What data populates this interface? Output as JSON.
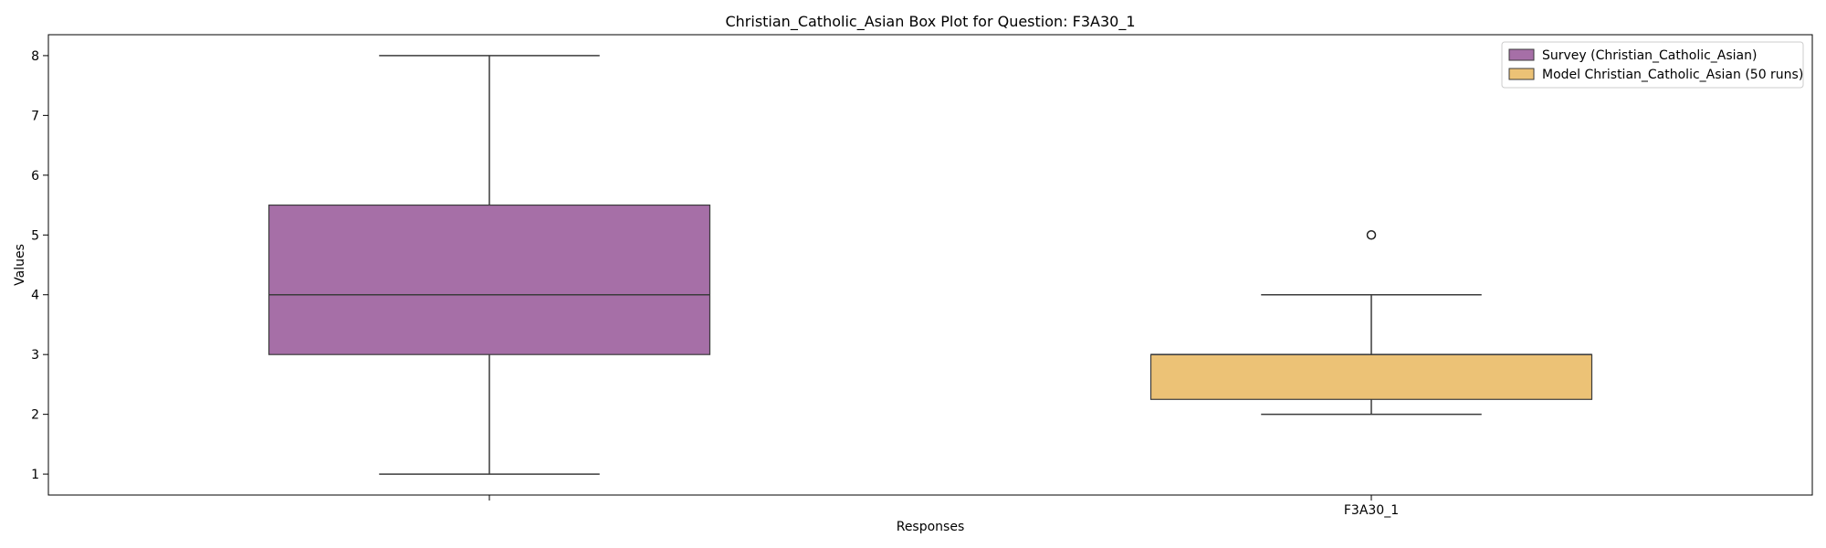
{
  "chart_data": {
    "type": "box",
    "title": "Christian_Catholic_Asian Box Plot for Question: F3A30_1",
    "xlabel": "Responses",
    "ylabel": "Values",
    "ylim": [
      0.65,
      8.35
    ],
    "yticks": [
      1,
      2,
      3,
      4,
      5,
      6,
      7,
      8
    ],
    "xtick_labels": [
      "",
      "F3A30_1"
    ],
    "legend_position": "top-right",
    "grid": false,
    "series": [
      {
        "name": "Survey (Christian_Catholic_Asian)",
        "color": "#a66fa7",
        "whisker_low": 1,
        "q1": 3,
        "median": 4,
        "q3": 5.5,
        "whisker_high": 8,
        "outliers": []
      },
      {
        "name": "Model Christian_Catholic_Asian (50 runs)",
        "color": "#ecc276",
        "whisker_low": 2,
        "q1": 2.25,
        "median": 3,
        "q3": 3,
        "whisker_high": 4,
        "outliers": [
          5
        ]
      }
    ]
  }
}
